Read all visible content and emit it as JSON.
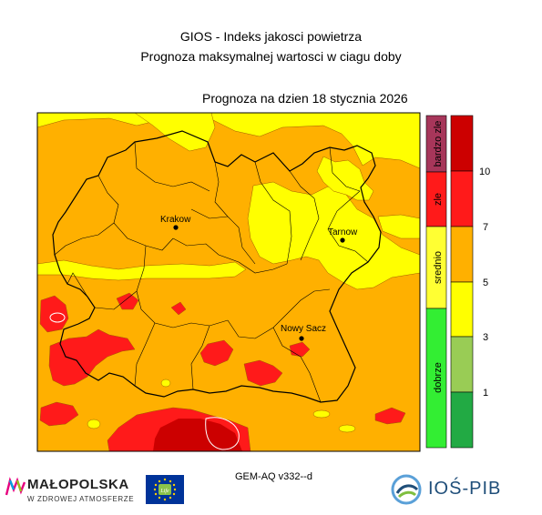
{
  "header": {
    "title": "GIOS - Indeks jakosci powietrza",
    "subtitle": "Prognoza maksymalnej wartosci w ciagu doby",
    "forecast_date": "Prognoza na dzien  18 stycznia 2026"
  },
  "cities": [
    {
      "name": "Krakow"
    },
    {
      "name": "Tarnow"
    },
    {
      "name": "Nowy Sacz"
    }
  ],
  "legend": {
    "categories": [
      {
        "label": "bardzo zle",
        "color": "#a7365a"
      },
      {
        "label": "zle",
        "color": "#ff1a1a"
      },
      {
        "label": "srednio",
        "color": "#ffff33"
      },
      {
        "label": "dobrze",
        "color": "#33ee33"
      }
    ],
    "scale_colors": [
      "#cc0000",
      "#ff1a1a",
      "#ffb000",
      "#ffff00",
      "#99cc55",
      "#22aa44"
    ],
    "scale_ticks": [
      "10",
      "7",
      "5",
      "3",
      "1"
    ]
  },
  "colors": {
    "level_3_5": "#ffff00",
    "level_5_7": "#ffb000",
    "level_7_10": "#ff1a1a",
    "level_10_plus": "#cc0000"
  },
  "footer": {
    "model": "GEM-AQ v332--d",
    "malopolska_name": "MAŁOPOLSKA",
    "malopolska_tagline": "W ZDROWEJ ATMOSFERZE",
    "ios_name": "IOŚ-PIB",
    "eu_flag_text": "Life"
  }
}
